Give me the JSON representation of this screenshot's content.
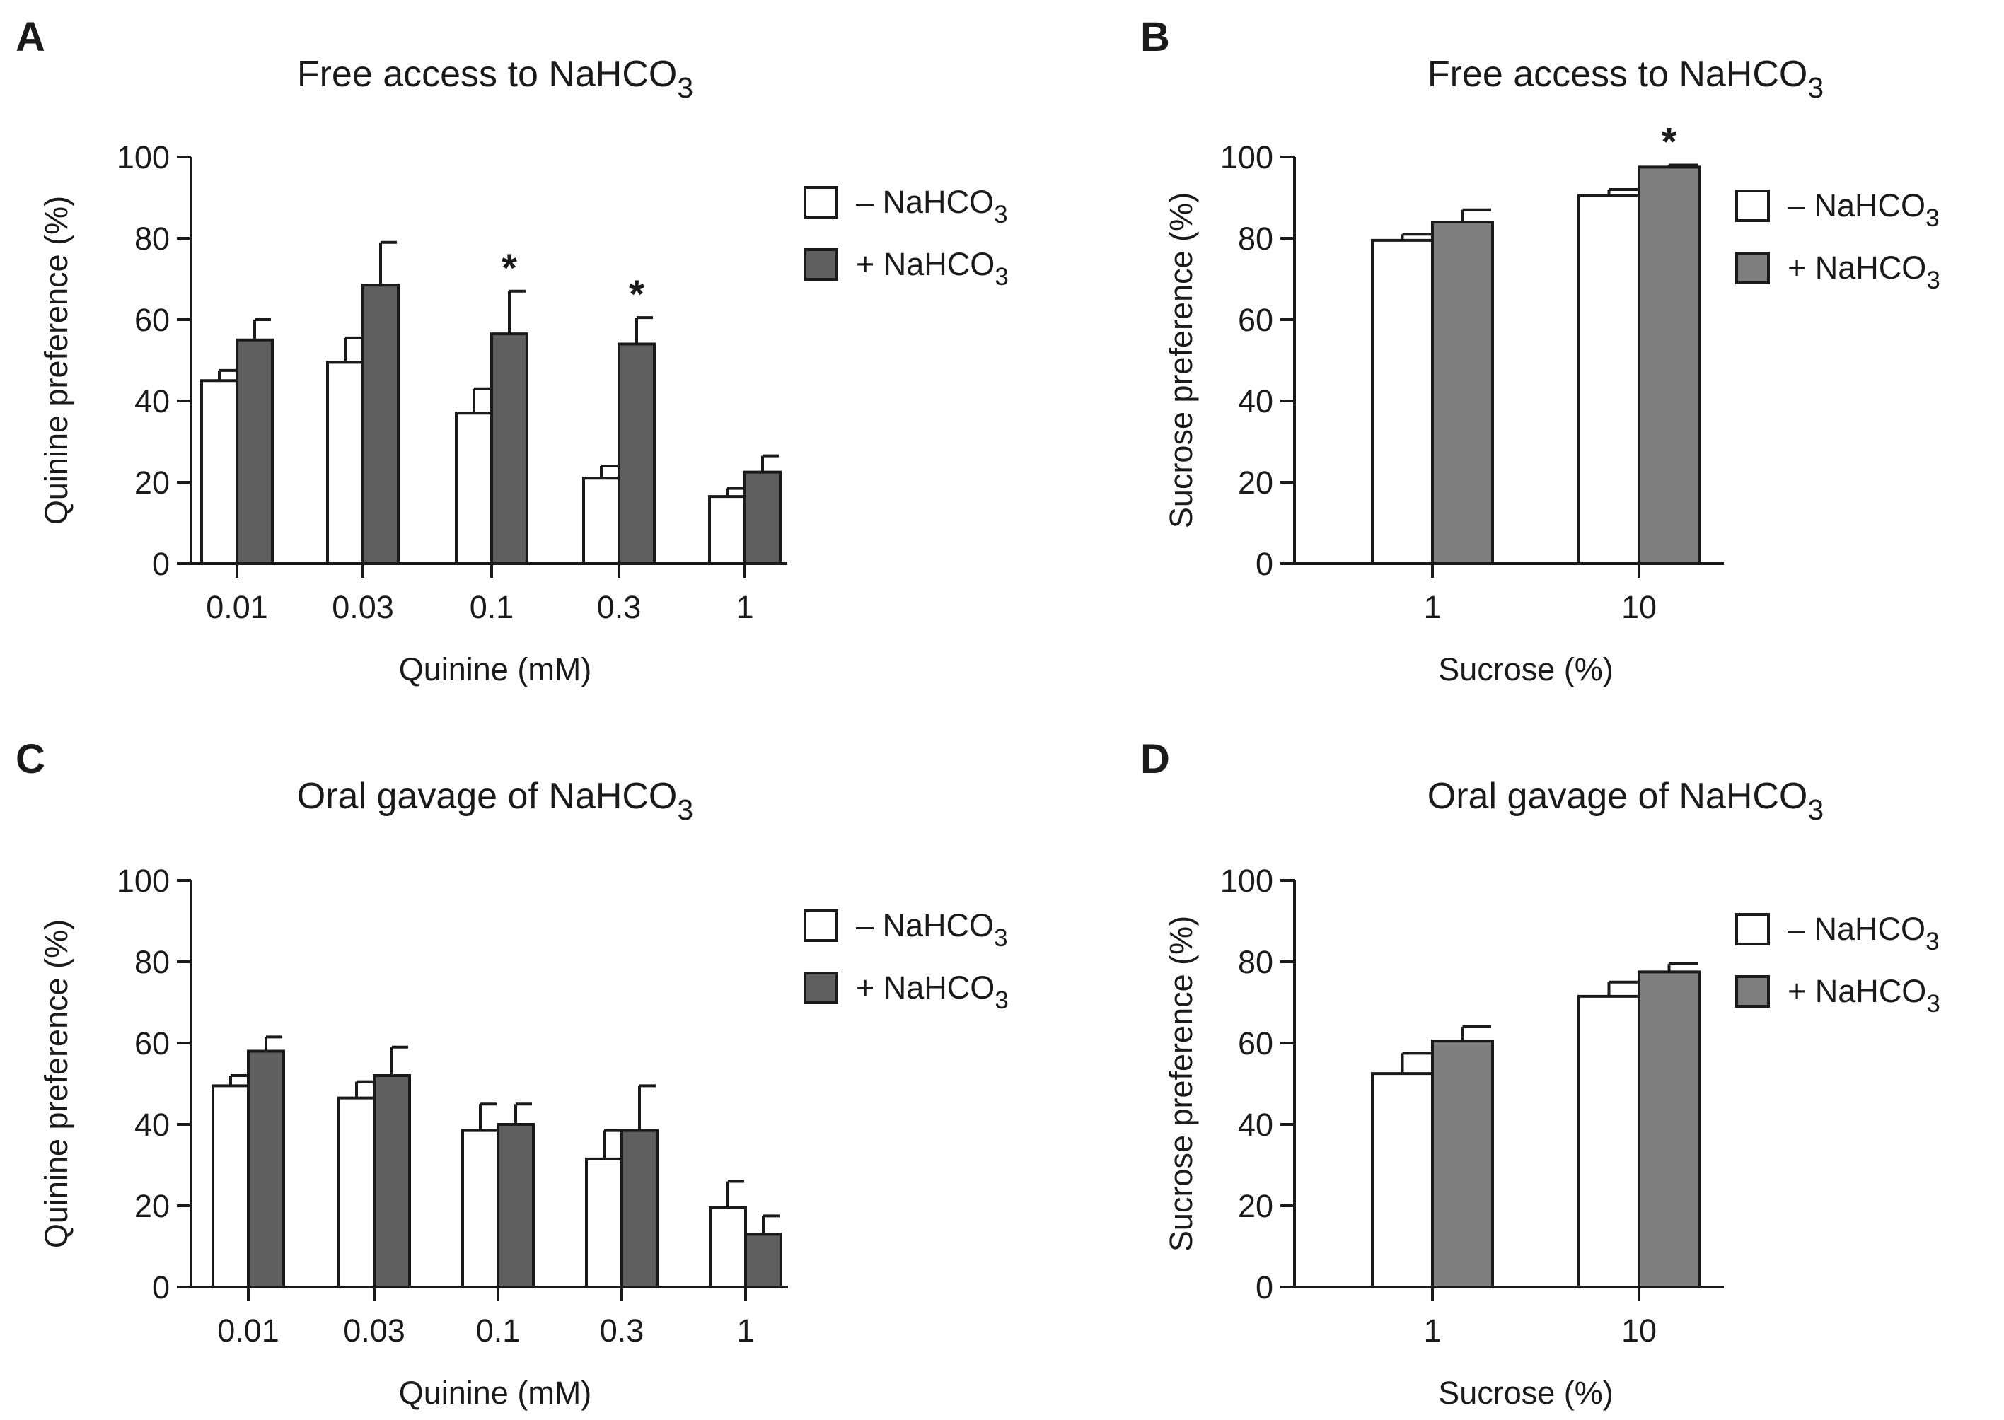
{
  "colors": {
    "minus_fill": "#ffffff",
    "plus_fill_quinine": "#5f5f5f",
    "plus_fill_sucrose": "#7f7f7f",
    "stroke": "#1a1a1a"
  },
  "chart_data": [
    {
      "id": "A",
      "panel_letter": "A",
      "type": "bar",
      "title": "Free access to NaHCO",
      "title_sub": "3",
      "xlabel": "Quinine (mM)",
      "ylabel": "Quinine preference  (%)",
      "ylim": [
        0,
        100
      ],
      "yticks": [
        "0",
        "20",
        "40",
        "60",
        "80",
        "100"
      ],
      "categories": [
        "0.01",
        "0.03",
        "0.1",
        "0.3",
        "1"
      ],
      "legend": [
        {
          "label": "– NaHCO",
          "sub": "3"
        },
        {
          "label": "+ NaHCO",
          "sub": "3"
        }
      ],
      "series": [
        {
          "name": "– NaHCO3",
          "values": [
            45,
            49.5,
            37,
            21,
            16.5
          ],
          "errors": [
            2.5,
            6,
            6,
            3,
            2
          ]
        },
        {
          "name": "+ NaHCO3",
          "values": [
            55,
            68.5,
            56.5,
            54,
            22.5
          ],
          "errors": [
            5,
            10.5,
            10.5,
            6.5,
            4
          ]
        }
      ],
      "significance": [
        {
          "category": "0.1",
          "series": "+ NaHCO3",
          "mark": "*"
        },
        {
          "category": "0.3",
          "series": "+ NaHCO3",
          "mark": "*"
        }
      ]
    },
    {
      "id": "B",
      "panel_letter": "B",
      "type": "bar",
      "title": "Free access to NaHCO",
      "title_sub": "3",
      "xlabel": "Sucrose (%)",
      "ylabel": "Sucrose preference (%)",
      "ylim": [
        0,
        100
      ],
      "yticks": [
        "0",
        "20",
        "40",
        "60",
        "80",
        "100"
      ],
      "categories": [
        "1",
        "10"
      ],
      "legend": [
        {
          "label": "– NaHCO",
          "sub": "3"
        },
        {
          "label": "+ NaHCO",
          "sub": "3"
        }
      ],
      "series": [
        {
          "name": "– NaHCO3",
          "values": [
            79.5,
            90.5
          ],
          "errors": [
            1.5,
            1.5
          ]
        },
        {
          "name": "+ NaHCO3",
          "values": [
            84,
            97.5
          ],
          "errors": [
            3,
            0.5
          ]
        }
      ],
      "significance": [
        {
          "category": "10",
          "series": "+ NaHCO3",
          "mark": "*"
        }
      ]
    },
    {
      "id": "C",
      "panel_letter": "C",
      "type": "bar",
      "title": "Oral gavage of NaHCO",
      "title_sub": "3",
      "xlabel": "Quinine (mM)",
      "ylabel": "Quinine preference  (%)",
      "ylim": [
        0,
        100
      ],
      "yticks": [
        "0",
        "20",
        "40",
        "60",
        "80",
        "100"
      ],
      "categories": [
        "0.01",
        "0.03",
        "0.1",
        "0.3",
        "1"
      ],
      "legend": [
        {
          "label": "– NaHCO",
          "sub": "3"
        },
        {
          "label": "+ NaHCO",
          "sub": "3"
        }
      ],
      "series": [
        {
          "name": "– NaHCO3",
          "values": [
            49.5,
            46.5,
            38.5,
            31.5,
            19.5
          ],
          "errors": [
            2.5,
            4,
            6.5,
            7,
            6.5
          ]
        },
        {
          "name": "+ NaHCO3",
          "values": [
            58,
            52,
            40,
            38.5,
            13
          ],
          "errors": [
            3.5,
            7,
            5,
            11,
            4.5
          ]
        }
      ],
      "significance": []
    },
    {
      "id": "D",
      "panel_letter": "D",
      "type": "bar",
      "title": "Oral gavage of NaHCO",
      "title_sub": "3",
      "xlabel": "Sucrose (%)",
      "ylabel": "Sucrose preference (%)",
      "ylim": [
        0,
        100
      ],
      "yticks": [
        "0",
        "20",
        "40",
        "60",
        "80",
        "100"
      ],
      "categories": [
        "1",
        "10"
      ],
      "legend": [
        {
          "label": "– NaHCO",
          "sub": "3"
        },
        {
          "label": "+ NaHCO",
          "sub": "3"
        }
      ],
      "series": [
        {
          "name": "– NaHCO3",
          "values": [
            52.5,
            71.5
          ],
          "errors": [
            5,
            3.5
          ]
        },
        {
          "name": "+ NaHCO3",
          "values": [
            60.5,
            77.5
          ],
          "errors": [
            3.5,
            2
          ]
        }
      ],
      "significance": []
    }
  ]
}
